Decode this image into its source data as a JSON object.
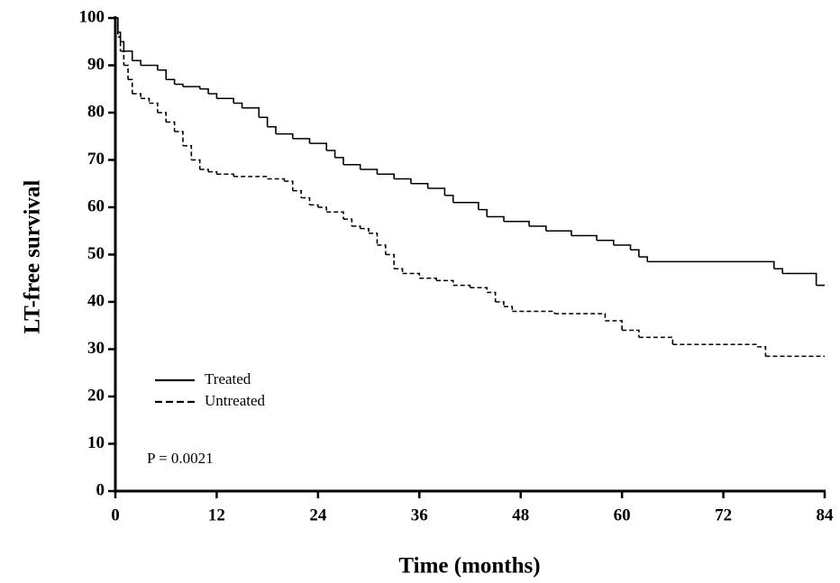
{
  "chart_data": {
    "type": "step",
    "x_label": "Time (months)",
    "y_label": "LT-free survival",
    "annotation": "P = 0.0021",
    "xlim": [
      0,
      84
    ],
    "xticks": [
      0,
      12,
      24,
      36,
      48,
      60,
      72,
      84
    ],
    "ylim": [
      0,
      100
    ],
    "yticks": [
      0,
      10,
      20,
      30,
      40,
      50,
      60,
      70,
      80,
      90,
      100
    ],
    "legend": "lower-left",
    "series": [
      {
        "name": "Treated",
        "color": "#000000",
        "dash": "solid",
        "x": [
          0,
          0.3,
          0.6,
          1,
          2,
          3,
          5,
          6,
          7,
          8,
          10,
          11,
          12,
          14,
          15,
          17,
          18,
          19,
          21,
          23,
          25,
          26,
          27,
          29,
          31,
          33,
          35,
          37,
          39,
          40,
          43,
          44,
          46,
          49,
          51,
          54,
          57,
          59,
          61,
          62,
          63,
          77,
          78,
          79,
          82,
          83,
          84
        ],
        "values": [
          100,
          97,
          95,
          93,
          91,
          90,
          89,
          87,
          86,
          85.5,
          85,
          84,
          83,
          82,
          81,
          79,
          77,
          75.5,
          74.5,
          73.5,
          72,
          70.5,
          69,
          68,
          67,
          66,
          65,
          64,
          62.5,
          61,
          59.5,
          58,
          57,
          56,
          55,
          54,
          53,
          52,
          51,
          49.5,
          48.5,
          48.5,
          47,
          46,
          46,
          43.5,
          43.5
        ]
      },
      {
        "name": "Untreated",
        "color": "#000000",
        "dash": "dashed",
        "x": [
          0,
          0.3,
          0.6,
          1,
          1.5,
          2,
          3,
          4,
          5,
          6,
          7,
          8,
          9,
          10,
          11,
          12,
          14,
          18,
          20,
          21,
          22,
          23,
          24,
          25,
          27,
          28,
          29,
          30,
          31,
          32,
          33,
          34,
          36,
          38,
          40,
          42,
          44,
          45,
          46,
          47,
          52,
          58,
          60,
          62,
          66,
          72,
          76,
          77,
          84
        ],
        "values": [
          100,
          96,
          93,
          90,
          87,
          84,
          83,
          82,
          80,
          78,
          76,
          73,
          70,
          68,
          67.5,
          67,
          66.5,
          66,
          65.5,
          63.5,
          62,
          60.5,
          60,
          59,
          57.5,
          56,
          55.5,
          54.5,
          52,
          50,
          47,
          46,
          45,
          44.5,
          43.5,
          43,
          42,
          40,
          39,
          38,
          37.5,
          36,
          34,
          32.5,
          31,
          31,
          30.5,
          28.5,
          28.5
        ]
      }
    ]
  }
}
